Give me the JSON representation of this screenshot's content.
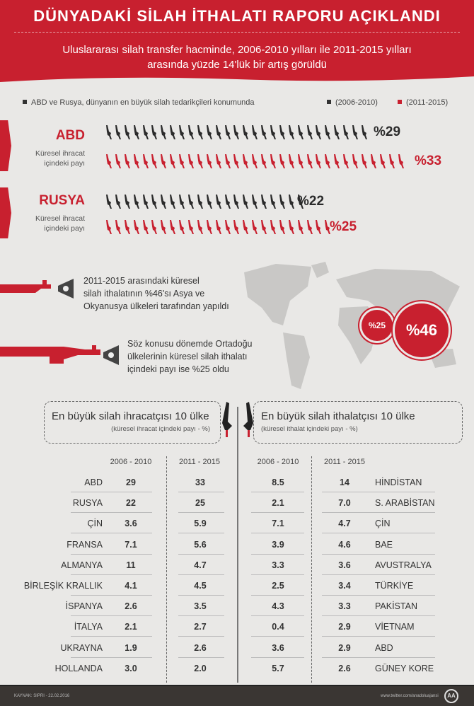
{
  "header": {
    "title": "DÜNYADAKİ SİLAH İTHALATI RAPORU AÇIKLANDI",
    "subtitle_line1": "Uluslararası silah transfer hacminde, 2006-2010 yılları ile 2011-2015 yılları",
    "subtitle_line2": "arasında yüzde 14'lük bir artış görüldü"
  },
  "colors": {
    "red": "#c8202f",
    "dark": "#2b2b2b",
    "background": "#e9e8e6"
  },
  "legend": {
    "note": "ABD ve Rusya, dünyanın en büyük silah tedarikçileri konumunda",
    "period1": "(2006-2010)",
    "period2": "(2011-2015)"
  },
  "suppliers": [
    {
      "name": "ABD",
      "sub1": "Küresel ihracat",
      "sub2": "içindeki payı",
      "share_2006_2010": 29,
      "share_2011_2015": 33,
      "label1": "%29",
      "label2": "%33"
    },
    {
      "name": "RUSYA",
      "sub1": "Küresel ihracat",
      "sub2": "içindeki payı",
      "share_2006_2010": 22,
      "share_2011_2015": 25,
      "label1": "%22",
      "label2": "%25"
    }
  ],
  "notes": {
    "asia_l1": "2011-2015 arasındaki küresel",
    "asia_l2": "silah ithalatının %46'sı Asya ve",
    "asia_l3": "Okyanusya ülkeleri tarafından yapıldı",
    "me_l1": "Söz konusu dönemde Ortadoğu",
    "me_l2": "ülkelerinin küresel silah ithalatı",
    "me_l3": "içindeki payı ise %25 oldu",
    "circle_me": "%25",
    "circle_asia": "%46"
  },
  "exporters": {
    "title": "En büyük silah ihracatçısı 10 ülke",
    "subtitle": "(küresel ihracat içindeki payı - %)",
    "col1": "2006 - 2010",
    "col2": "2011 - 2015",
    "rows": [
      [
        "ABD",
        "29",
        "33"
      ],
      [
        "RUSYA",
        "22",
        "25"
      ],
      [
        "ÇİN",
        "3.6",
        "5.9"
      ],
      [
        "FRANSA",
        "7.1",
        "5.6"
      ],
      [
        "ALMANYA",
        "11",
        "4.7"
      ],
      [
        "BİRLEŞİK KRALLIK",
        "4.1",
        "4.5"
      ],
      [
        "İSPANYA",
        "2.6",
        "3.5"
      ],
      [
        "İTALYA",
        "2.1",
        "2.7"
      ],
      [
        "UKRAYNA",
        "1.9",
        "2.6"
      ],
      [
        "HOLLANDA",
        "3.0",
        "2.0"
      ]
    ]
  },
  "importers": {
    "title": "En büyük silah ithalatçısı 10 ülke",
    "subtitle": "(küresel ithalat içindeki payı - %)",
    "col1": "2006 - 2010",
    "col2": "2011 - 2015",
    "rows": [
      [
        "HİNDİSTAN",
        "8.5",
        "14"
      ],
      [
        "S. ARABİSTAN",
        "2.1",
        "7.0"
      ],
      [
        "ÇİN",
        "7.1",
        "4.7"
      ],
      [
        "BAE",
        "3.9",
        "4.6"
      ],
      [
        "AVUSTRALYA",
        "3.3",
        "3.6"
      ],
      [
        "TÜRKİYE",
        "2.5",
        "3.4"
      ],
      [
        "PAKİSTAN",
        "4.3",
        "3.3"
      ],
      [
        "VİETNAM",
        "0.4",
        "2.9"
      ],
      [
        "ABD",
        "3.6",
        "2.9"
      ],
      [
        "GÜNEY KORE",
        "5.7",
        "2.6"
      ]
    ]
  },
  "footer": {
    "source": "KAYNAK: SIPRI - 22.02.2016",
    "twitter": "www.twitter.com/anadoluajansi",
    "logo_text": "AA"
  }
}
